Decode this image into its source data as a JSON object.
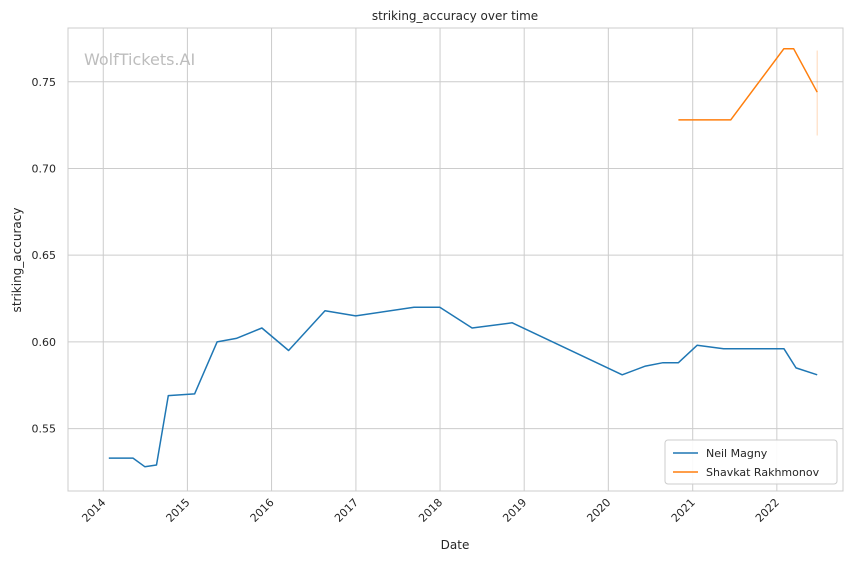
{
  "chart_data": {
    "type": "line",
    "title": "striking_accuracy over time",
    "xlabel": "Date",
    "ylabel": "striking_accuracy",
    "watermark": "WolfTickets.AI",
    "x_ticks": [
      "2014",
      "2015",
      "2016",
      "2017",
      "2018",
      "2019",
      "2020",
      "2021",
      "2022"
    ],
    "y_ticks": [
      0.55,
      0.6,
      0.65,
      0.7,
      0.75
    ],
    "y_tick_labels": [
      "0.55",
      "0.60",
      "0.65",
      "0.70",
      "0.75"
    ],
    "xlim": [
      "2013-08-01",
      "2022-10-15"
    ],
    "ylim": [
      0.514,
      0.781
    ],
    "grid": true,
    "legend_position": "lower-right",
    "series": [
      {
        "name": "Neil Magny",
        "color": "#1f77b4",
        "points": [
          [
            "2014-01-25",
            0.533
          ],
          [
            "2014-05-10",
            0.533
          ],
          [
            "2014-06-30",
            0.528
          ],
          [
            "2014-08-20",
            0.529
          ],
          [
            "2014-10-10",
            0.569
          ],
          [
            "2015-02-01",
            0.57
          ],
          [
            "2015-05-10",
            0.6
          ],
          [
            "2015-08-01",
            0.602
          ],
          [
            "2015-11-20",
            0.608
          ],
          [
            "2016-03-15",
            0.595
          ],
          [
            "2016-08-20",
            0.618
          ],
          [
            "2016-12-31",
            0.615
          ],
          [
            "2017-09-10",
            0.62
          ],
          [
            "2017-12-31",
            0.62
          ],
          [
            "2018-05-20",
            0.608
          ],
          [
            "2018-11-10",
            0.611
          ],
          [
            "2020-03-01",
            0.581
          ],
          [
            "2020-06-10",
            0.586
          ],
          [
            "2020-08-25",
            0.588
          ],
          [
            "2020-10-31",
            0.588
          ],
          [
            "2021-01-20",
            0.598
          ],
          [
            "2021-05-15",
            0.596
          ],
          [
            "2022-02-01",
            0.596
          ],
          [
            "2022-03-25",
            0.585
          ],
          [
            "2022-06-25",
            0.581
          ]
        ]
      },
      {
        "name": "Shavkat Rakhmonov",
        "color": "#ff7f0e",
        "points": [
          [
            "2020-10-31",
            0.728
          ],
          [
            "2021-06-15",
            0.728
          ],
          [
            "2022-01-31",
            0.769
          ],
          [
            "2022-03-15",
            0.769
          ],
          [
            "2022-06-25",
            0.744
          ]
        ],
        "error_band": {
          "date": "2022-06-25",
          "low": 0.719,
          "high": 0.768
        }
      }
    ]
  }
}
